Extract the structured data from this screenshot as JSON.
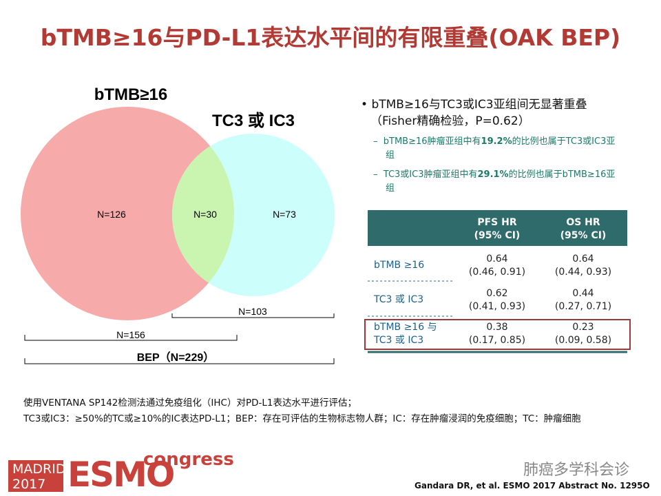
{
  "title": "bTMB≥16与PD-L1表达水平间的有限重叠(OAK BEP)",
  "venn": {
    "set_a_label": "bTMB≥16",
    "set_b_label": "TC3 或 IC3",
    "only_a": "N=126",
    "overlap": "N=30",
    "only_b": "N=73",
    "total_b": "N=103",
    "total_a": "N=156",
    "total": "BEP（N=229）"
  },
  "bullets": {
    "main": "bTMB≥16与TC3或IC3亚组间无显著重叠（Fisher精确检验，P=0.62）",
    "subs": [
      [
        "bTMB≥16肿瘤亚组中有",
        "19.2%",
        "的比例也属于TC3或IC3亚组"
      ],
      [
        "TC3或IC3肿瘤亚组中有",
        "29.1%",
        "的比例也属于bTMB≥16亚组"
      ]
    ]
  },
  "table": {
    "header": [
      [
        "PFS HR",
        "(95% CI)"
      ],
      [
        "OS HR",
        "(95% CI)"
      ]
    ],
    "rows": [
      {
        "label": [
          "bTMB ≥16"
        ],
        "pfs": [
          "0.64",
          "(0.46, 0.91)"
        ],
        "os": [
          "0.64",
          "(0.44, 0.93)"
        ]
      },
      {
        "label": [
          "TC3 或 IC3"
        ],
        "pfs": [
          "0.62",
          "(0.41, 0.93)"
        ],
        "os": [
          "0.44",
          "(0.27, 0.71)"
        ]
      },
      {
        "label": [
          "bTMB ≥16 与",
          "TC3 或 IC3"
        ],
        "pfs": [
          "0.38",
          "(0.17, 0.85)"
        ],
        "os": [
          "0.23",
          "(0.09, 0.58)"
        ]
      }
    ]
  },
  "footnotes": [
    "使用VENTANA SP142检测法通过免疫组化（IHC）对PD-L1表达水平进行评估；",
    "TC3或IC3：≥50%的TC或≥10%的IC表达PD-L1；BEP：存在可评估的生物标志物人群；IC：存在肿瘤浸润的免疫细胞；TC：肿瘤细胞"
  ],
  "logo": {
    "city": "MADRID",
    "year": "2017",
    "name": "ESMO",
    "event": "congress"
  },
  "watermark": "肺癌多学科会诊",
  "citation": "Gandara DR, et al. ESMO 2017 Abstract No. 1295O"
}
